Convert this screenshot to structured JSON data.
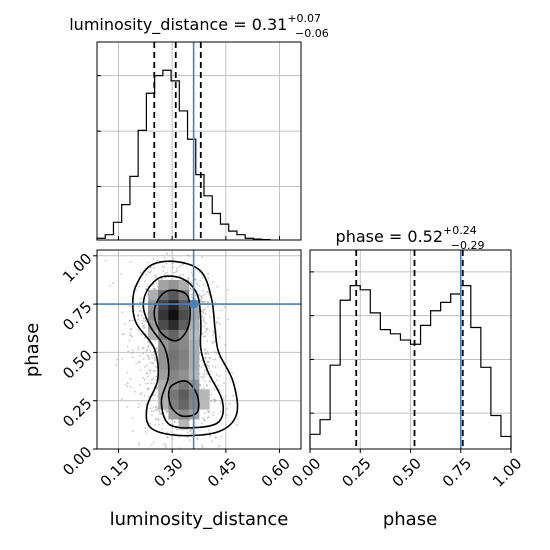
{
  "chart_data": {
    "type": "corner",
    "colors": {
      "truth": "#4682b4",
      "hist": "#000000",
      "grid": "#c0c0c0"
    },
    "truths": {
      "luminosity_distance": 0.36,
      "phase": 0.75
    },
    "panels": [
      {
        "id": "hist-luminosity_distance",
        "type": "histogram",
        "title_param": "luminosity_distance",
        "title_value": "0.31",
        "title_plus": "+0.07",
        "title_minus": "−0.06",
        "xlim": [
          0.09,
          0.66
        ],
        "bin_edges": [
          0.09,
          0.113,
          0.136,
          0.159,
          0.182,
          0.205,
          0.228,
          0.251,
          0.274,
          0.297,
          0.32,
          0.343,
          0.366,
          0.389,
          0.412,
          0.435,
          0.458,
          0.481,
          0.504,
          0.527,
          0.55,
          0.573
        ],
        "counts": [
          0.01,
          0.03,
          0.1,
          0.2,
          0.36,
          0.62,
          0.83,
          0.93,
          0.96,
          0.9,
          0.73,
          0.57,
          0.37,
          0.25,
          0.15,
          0.09,
          0.05,
          0.03,
          0.01,
          0.005,
          0.002
        ],
        "quantiles": [
          0.25,
          0.31,
          0.38
        ],
        "truth": 0.36
      },
      {
        "id": "hist-phase",
        "type": "histogram",
        "title_param": "phase",
        "title_value": "0.52",
        "title_plus": "+0.24",
        "title_minus": "−0.29",
        "xlim": [
          0.0,
          1.0
        ],
        "xticks": [
          "0.00",
          "0.25",
          "0.50",
          "0.75",
          "1.00"
        ],
        "xlabel": "phase",
        "bin_edges": [
          0.0,
          0.05,
          0.1,
          0.15,
          0.2,
          0.25,
          0.3,
          0.35,
          0.4,
          0.45,
          0.5,
          0.55,
          0.6,
          0.65,
          0.7,
          0.75,
          0.8,
          0.85,
          0.9,
          0.95,
          1.0
        ],
        "counts": [
          0.07,
          0.14,
          0.4,
          0.71,
          0.78,
          0.76,
          0.65,
          0.57,
          0.55,
          0.52,
          0.5,
          0.59,
          0.66,
          0.7,
          0.74,
          0.78,
          0.58,
          0.39,
          0.16,
          0.06
        ],
        "quantiles": [
          0.23,
          0.52,
          0.76
        ],
        "truth": 0.75
      },
      {
        "id": "scatter-luminosity_distance-phase",
        "type": "2d-density",
        "xlim": [
          0.09,
          0.66
        ],
        "ylim": [
          0.0,
          1.03
        ],
        "xticks": [
          "0.15",
          "0.30",
          "0.45",
          "0.60"
        ],
        "yticks": [
          "0.00",
          "0.25",
          "0.50",
          "0.75",
          "1.00"
        ],
        "xlabel": "luminosity_distance",
        "ylabel": "phase",
        "density_peaks": [
          {
            "x": 0.3,
            "y": 0.7,
            "weight": 1.0
          },
          {
            "x": 0.33,
            "y": 0.27,
            "weight": 0.65
          }
        ],
        "truth": {
          "x": 0.36,
          "y": 0.75
        }
      }
    ]
  }
}
